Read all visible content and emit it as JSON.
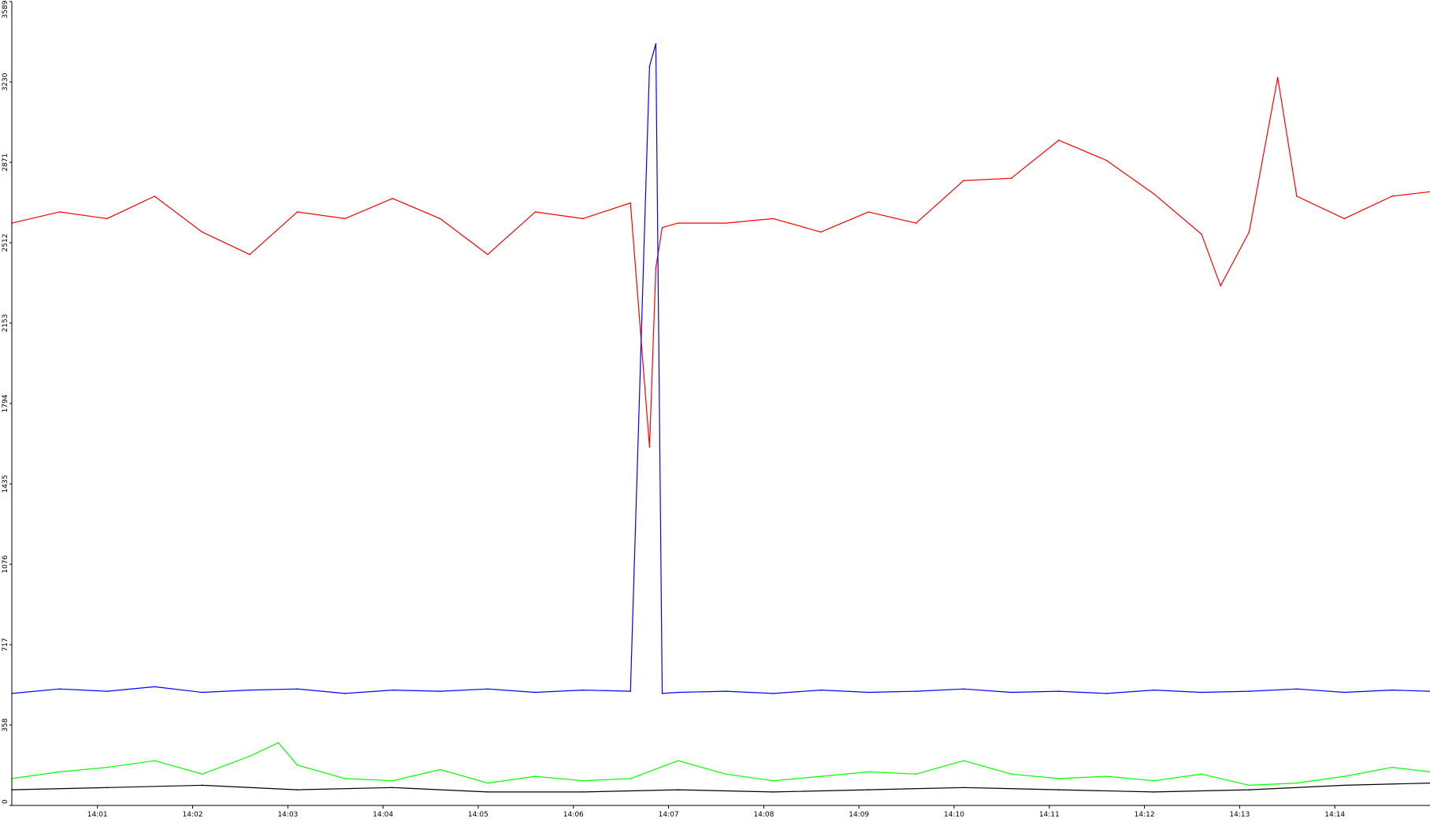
{
  "chart_data": {
    "type": "line",
    "title": "",
    "xlabel": "",
    "ylabel": "",
    "ylim": [
      0,
      3589
    ],
    "xlim_minutes": [
      840.1,
      855.0
    ],
    "y_ticks": [
      "0",
      "358",
      "717",
      "1076",
      "1435",
      "1794",
      "2153",
      "2512",
      "2871",
      "3230",
      "3589"
    ],
    "x_ticks": [
      "14:01",
      "14:02",
      "14:03",
      "14:04",
      "14:05",
      "14:06",
      "14:07",
      "14:08",
      "14:09",
      "14:10",
      "14:11",
      "14:12",
      "14:13",
      "14:14"
    ],
    "grid": false,
    "legend": "none",
    "series": [
      {
        "color": "#ff0000",
        "x": [
          "14:00:06",
          "14:00:36",
          "14:01:06",
          "14:01:36",
          "14:02:06",
          "14:02:36",
          "14:03:06",
          "14:03:36",
          "14:04:06",
          "14:04:36",
          "14:05:06",
          "14:05:36",
          "14:06:06",
          "14:06:36",
          "14:06:48",
          "14:06:52",
          "14:06:56",
          "14:07:06",
          "14:07:36",
          "14:08:06",
          "14:08:36",
          "14:09:06",
          "14:09:36",
          "14:10:06",
          "14:10:36",
          "14:11:06",
          "14:11:36",
          "14:12:06",
          "14:12:36",
          "14:12:48",
          "14:13:06",
          "14:13:24",
          "14:13:36",
          "14:14:06",
          "14:14:36",
          "14:15:00"
        ],
        "values": [
          2600,
          2650,
          2620,
          2720,
          2560,
          2460,
          2650,
          2620,
          2710,
          2620,
          2460,
          2650,
          2620,
          2690,
          1600,
          2400,
          2580,
          2600,
          2600,
          2620,
          2560,
          2650,
          2600,
          2790,
          2800,
          2970,
          2880,
          2730,
          2550,
          2320,
          2560,
          3250,
          2720,
          2620,
          2720,
          2740
        ]
      },
      {
        "color": "#0000ff",
        "x": [
          "14:00:06",
          "14:00:36",
          "14:01:06",
          "14:01:36",
          "14:02:06",
          "14:02:36",
          "14:03:06",
          "14:03:36",
          "14:04:06",
          "14:04:36",
          "14:05:06",
          "14:05:36",
          "14:06:06",
          "14:06:36",
          "14:06:48",
          "14:06:52",
          "14:06:56",
          "14:07:06",
          "14:07:36",
          "14:08:06",
          "14:08:36",
          "14:09:06",
          "14:09:36",
          "14:10:06",
          "14:10:36",
          "14:11:06",
          "14:11:36",
          "14:12:06",
          "14:12:36",
          "14:13:06",
          "14:13:36",
          "14:14:06",
          "14:14:36",
          "14:15:00"
        ],
        "values": [
          500,
          520,
          510,
          530,
          505,
          515,
          520,
          500,
          515,
          510,
          520,
          505,
          515,
          510,
          3300,
          3400,
          500,
          505,
          510,
          500,
          515,
          505,
          510,
          520,
          505,
          510,
          500,
          515,
          505,
          510,
          520,
          505,
          515,
          510
        ]
      },
      {
        "color": "#00ff00",
        "x": [
          "14:00:06",
          "14:00:36",
          "14:01:06",
          "14:01:36",
          "14:02:06",
          "14:02:36",
          "14:02:54",
          "14:03:06",
          "14:03:36",
          "14:04:06",
          "14:04:36",
          "14:05:06",
          "14:05:36",
          "14:06:06",
          "14:06:36",
          "14:07:06",
          "14:07:36",
          "14:08:06",
          "14:08:36",
          "14:09:06",
          "14:09:36",
          "14:10:06",
          "14:10:36",
          "14:11:06",
          "14:11:36",
          "14:12:06",
          "14:12:36",
          "14:13:06",
          "14:13:36",
          "14:14:06",
          "14:14:36",
          "14:15:00"
        ],
        "values": [
          120,
          150,
          170,
          200,
          140,
          220,
          280,
          180,
          120,
          110,
          160,
          100,
          130,
          110,
          120,
          200,
          140,
          110,
          130,
          150,
          140,
          200,
          140,
          120,
          130,
          110,
          140,
          90,
          100,
          130,
          170,
          150
        ]
      },
      {
        "color": "#000000",
        "x": [
          "14:00:06",
          "14:01:06",
          "14:02:06",
          "14:03:06",
          "14:04:06",
          "14:05:06",
          "14:06:06",
          "14:07:06",
          "14:08:06",
          "14:09:06",
          "14:10:06",
          "14:11:06",
          "14:12:06",
          "14:13:06",
          "14:14:06",
          "14:15:00"
        ],
        "values": [
          70,
          80,
          90,
          70,
          80,
          60,
          60,
          70,
          60,
          70,
          80,
          70,
          60,
          70,
          90,
          100
        ]
      }
    ]
  }
}
